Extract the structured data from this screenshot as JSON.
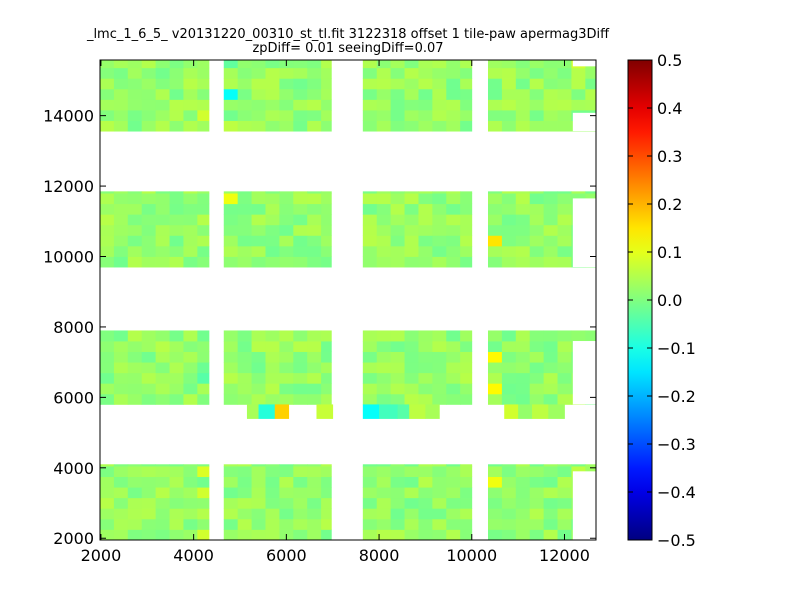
{
  "chart_data": {
    "type": "heatmap",
    "title_line1": "_lmc_1_6_5_ v20131220_00310_st_tl.fit 3122318 offset 1 tile-paw apermag3Diff",
    "title_line2": "zpDiff= 0.01 seeingDiff=0.07",
    "xlabel": "",
    "ylabel": "",
    "xlim": [
      1980,
      12680
    ],
    "ylim": [
      1950,
      15580
    ],
    "xticks": [
      "2000",
      "4000",
      "6000",
      "8000",
      "10000",
      "12000"
    ],
    "yticks": [
      "2000",
      "4000",
      "6000",
      "8000",
      "10000",
      "12000",
      "14000"
    ],
    "colorbar": {
      "colormap": "jet",
      "range": [
        -0.5,
        0.5
      ],
      "ticks": [
        "0.5",
        "0.4",
        "0.3",
        "0.2",
        "0.1",
        "0.0",
        "−0.1",
        "−0.2",
        "−0.3",
        "−0.4",
        "−0.5"
      ]
    },
    "cell_size": [
      300,
      300
    ],
    "x_columns": [
      [
        1980,
        4330
      ],
      [
        4650,
        6970
      ],
      [
        7650,
        10000
      ],
      [
        10350,
        12680
      ]
    ],
    "y_bands": [
      [
        1950,
        4100
      ],
      [
        5800,
        7900
      ],
      [
        9700,
        11850
      ],
      [
        13560,
        15580
      ]
    ],
    "base_value": 0.02,
    "cell_overrides": [
      {
        "x": 4800,
        "y": 14650,
        "v": -0.12
      },
      {
        "x": 4800,
        "y": 15400,
        "v": -0.03
      },
      {
        "x": 4200,
        "y": 14100,
        "v": 0.08
      },
      {
        "x": 4800,
        "y": 13700,
        "v": 0.06
      },
      {
        "x": 12200,
        "y": 15400,
        "v": 0.08
      },
      {
        "x": 4800,
        "y": 11600,
        "v": 0.11
      },
      {
        "x": 10550,
        "y": 10400,
        "v": 0.15
      },
      {
        "x": 10550,
        "y": 7000,
        "v": 0.13
      },
      {
        "x": 10550,
        "y": 6300,
        "v": 0.13
      },
      {
        "x": 10550,
        "y": 3500,
        "v": 0.11
      },
      {
        "x": 4200,
        "y": 3900,
        "v": 0.09
      },
      {
        "x": 4200,
        "y": 3300,
        "v": 0.08
      },
      {
        "x": 4200,
        "y": 2200,
        "v": 0.08
      },
      {
        "x": 4200,
        "y": 6700,
        "v": -0.02
      },
      {
        "x": 4200,
        "y": 6400,
        "v": -0.04
      },
      {
        "x": 12200,
        "y": 3900,
        "v": 0.06
      }
    ],
    "strip": {
      "y": [
        5400,
        5800
      ],
      "cells": [
        {
          "x": [
            5150,
            5400
          ],
          "v": 0.04
        },
        {
          "x": [
            5400,
            5750
          ],
          "v": -0.09
        },
        {
          "x": [
            5750,
            6050
          ],
          "v": 0.17
        },
        {
          "x": [
            6650,
            7000
          ],
          "v": 0.07
        },
        {
          "x": [
            7650,
            8000
          ],
          "v": -0.12
        },
        {
          "x": [
            8000,
            8400
          ],
          "v": -0.06
        },
        {
          "x": [
            8400,
            8650
          ],
          "v": -0.04
        },
        {
          "x": [
            8650,
            9000
          ],
          "v": 0.06
        },
        {
          "x": [
            9000,
            9300
          ],
          "v": 0.04
        },
        {
          "x": [
            10700,
            11000
          ],
          "v": 0.08
        },
        {
          "x": [
            11000,
            11300
          ],
          "v": 0.02
        },
        {
          "x": [
            11300,
            11650
          ],
          "v": 0.06
        },
        {
          "x": [
            11650,
            12000
          ],
          "v": 0.03
        }
      ]
    },
    "grid": false
  }
}
